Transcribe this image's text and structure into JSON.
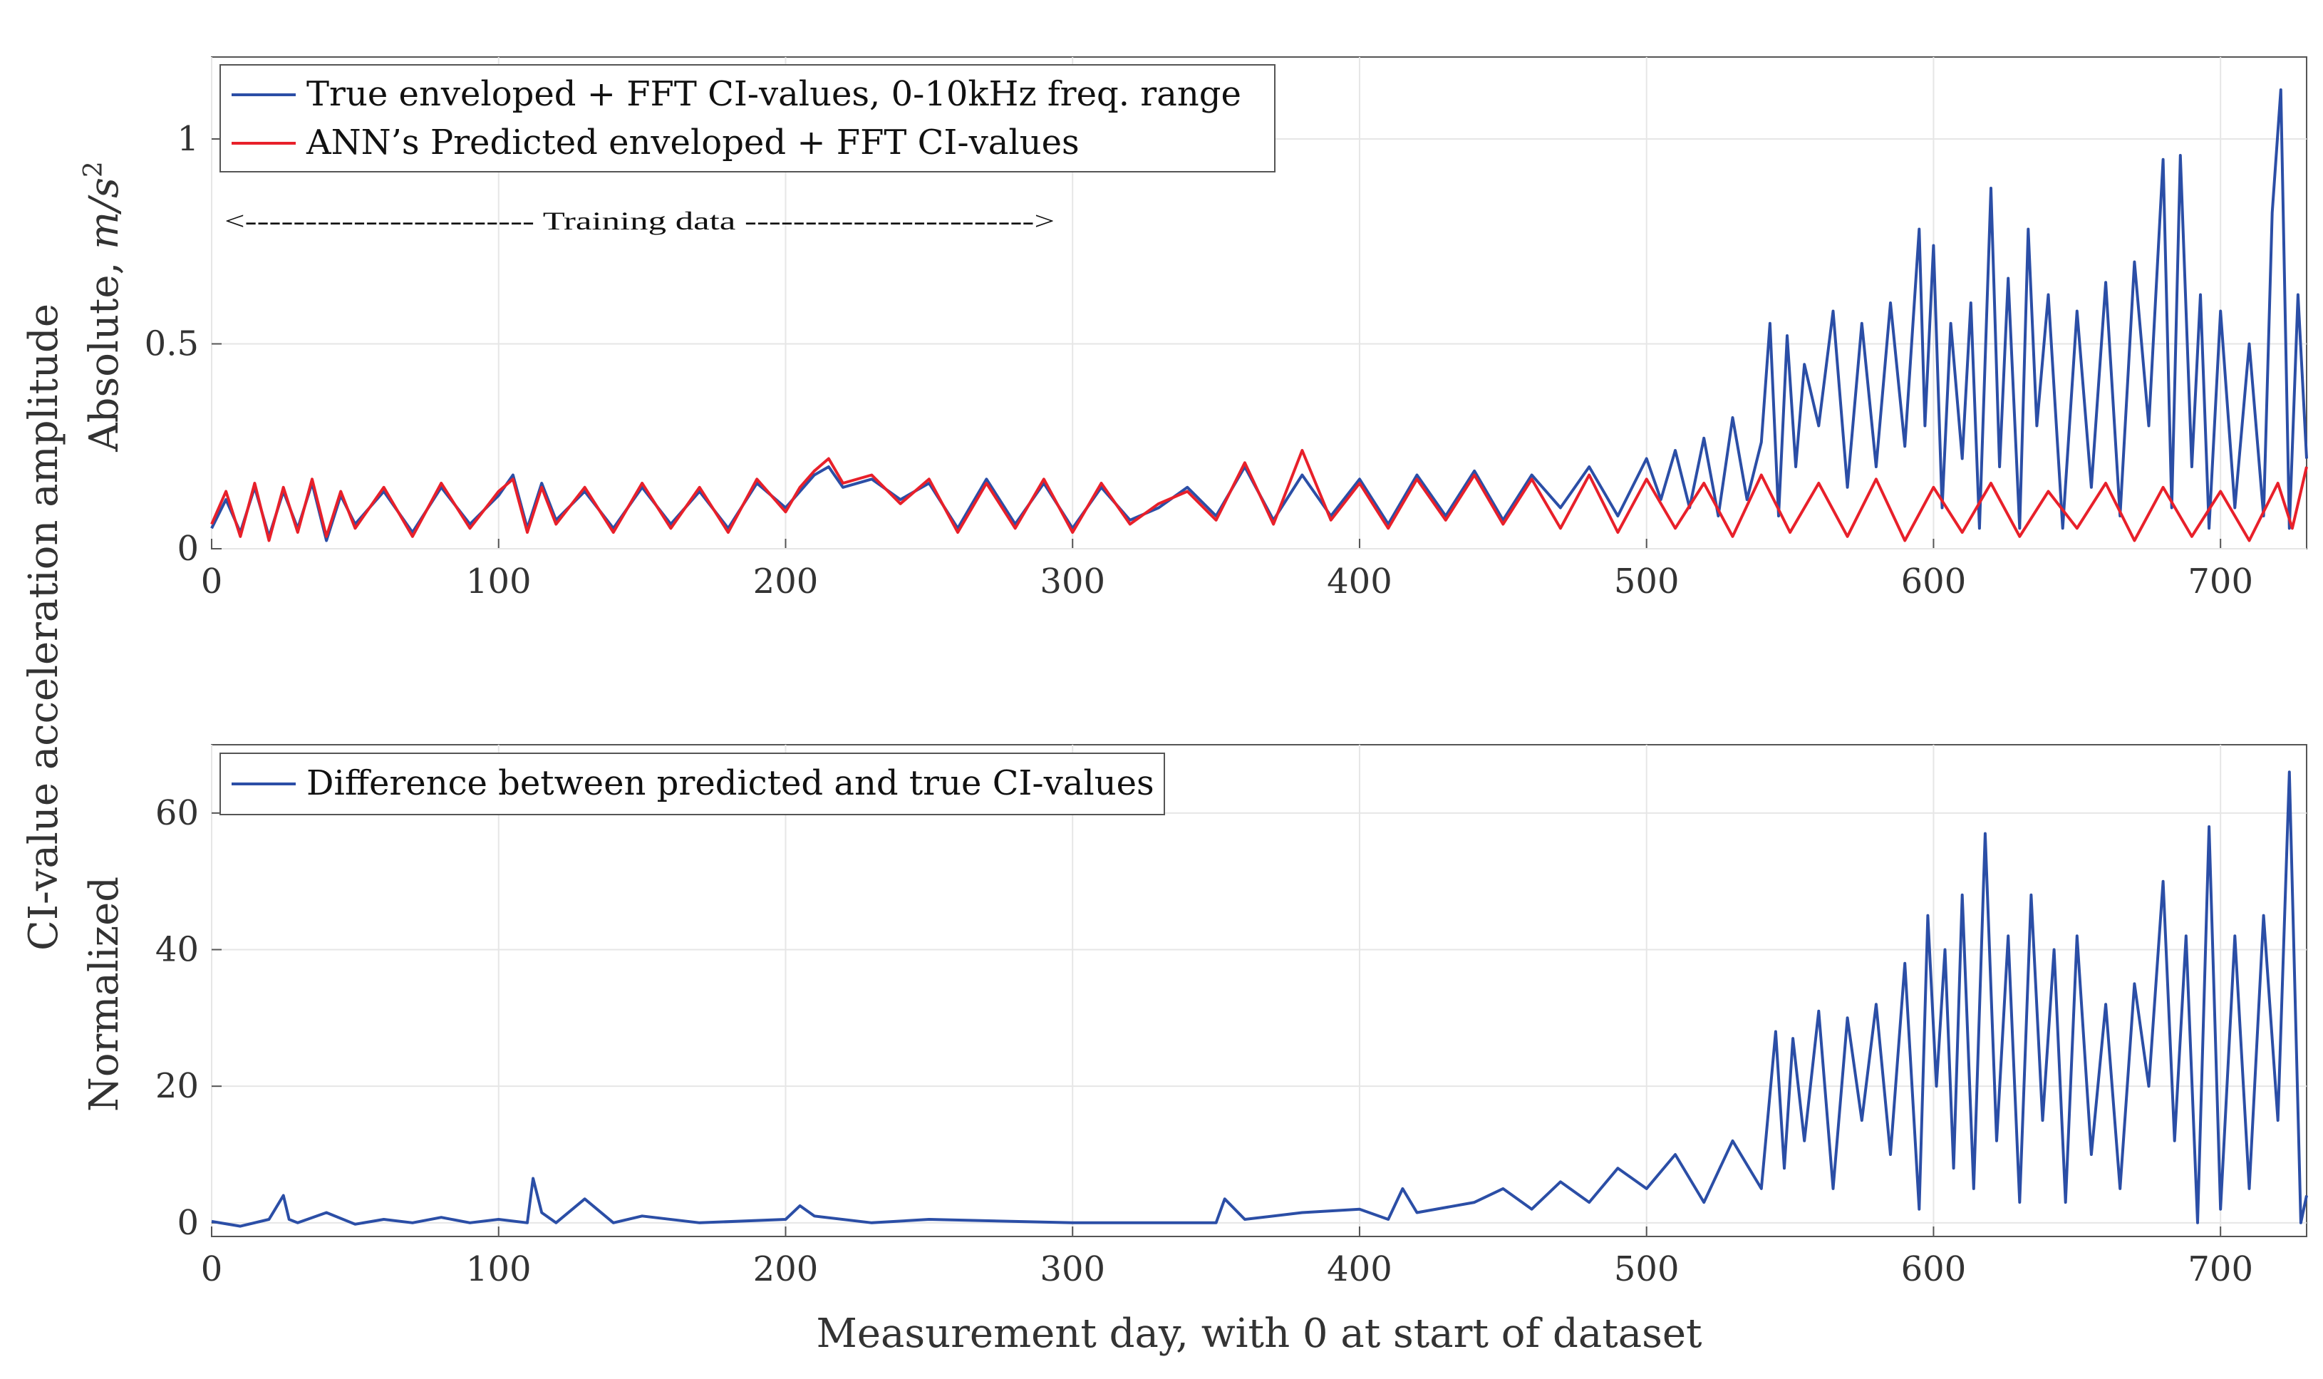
{
  "figure": {
    "shared_ylabel": "CI-value acceleration amplitude",
    "shared_xlabel": "Measurement day, with 0 at start of dataset"
  },
  "colors": {
    "true_series": "#2b4ea6",
    "predicted_series": "#e8202a",
    "grid": "#e6e6e6",
    "axes": "#555555"
  },
  "chart_data": [
    {
      "type": "line",
      "panel": "top",
      "ylabel": "Absolute, m/s²",
      "ylabel_parts": {
        "prefix": "Absolute, ",
        "unit": "m/s",
        "exponent": "2"
      },
      "xlim": [
        0,
        730
      ],
      "ylim": [
        0,
        1.2
      ],
      "xticks": [
        0,
        100,
        200,
        300,
        400,
        500,
        600,
        700
      ],
      "yticks": [
        0,
        0.5,
        1
      ],
      "ytick_labels": [
        "0",
        "0.5",
        "1"
      ],
      "grid": true,
      "legend_position": "top-left",
      "annotation": "<------------------------ Training data ------------------------>",
      "annotation_span": [
        0,
        300
      ],
      "series": [
        {
          "name": "True enveloped + FFT CI-values, 0-10kHz freq. range",
          "color": "#2b4ea6",
          "x": [
            0,
            5,
            10,
            15,
            20,
            25,
            30,
            35,
            40,
            45,
            50,
            60,
            70,
            80,
            90,
            100,
            105,
            110,
            115,
            120,
            130,
            140,
            150,
            160,
            170,
            180,
            190,
            200,
            205,
            210,
            215,
            220,
            230,
            240,
            250,
            260,
            270,
            280,
            290,
            300,
            310,
            320,
            330,
            340,
            350,
            360,
            370,
            380,
            390,
            400,
            410,
            420,
            430,
            440,
            450,
            460,
            470,
            480,
            490,
            500,
            505,
            510,
            515,
            520,
            525,
            530,
            535,
            540,
            543,
            546,
            549,
            552,
            555,
            560,
            565,
            570,
            575,
            580,
            585,
            590,
            595,
            597,
            600,
            603,
            606,
            610,
            613,
            616,
            620,
            623,
            626,
            630,
            633,
            636,
            640,
            645,
            650,
            655,
            660,
            665,
            670,
            675,
            680,
            683,
            686,
            690,
            693,
            696,
            700,
            705,
            710,
            715,
            718,
            721,
            724,
            727,
            730
          ],
          "values": [
            0.05,
            0.12,
            0.04,
            0.15,
            0.03,
            0.14,
            0.05,
            0.16,
            0.02,
            0.13,
            0.06,
            0.14,
            0.04,
            0.15,
            0.06,
            0.13,
            0.18,
            0.05,
            0.16,
            0.07,
            0.14,
            0.05,
            0.15,
            0.06,
            0.14,
            0.05,
            0.16,
            0.1,
            0.14,
            0.18,
            0.2,
            0.15,
            0.17,
            0.12,
            0.16,
            0.05,
            0.17,
            0.06,
            0.16,
            0.05,
            0.15,
            0.07,
            0.1,
            0.15,
            0.08,
            0.2,
            0.07,
            0.18,
            0.08,
            0.17,
            0.06,
            0.18,
            0.08,
            0.19,
            0.07,
            0.18,
            0.1,
            0.2,
            0.08,
            0.22,
            0.12,
            0.24,
            0.1,
            0.27,
            0.08,
            0.32,
            0.12,
            0.26,
            0.55,
            0.08,
            0.52,
            0.2,
            0.45,
            0.3,
            0.58,
            0.15,
            0.55,
            0.2,
            0.6,
            0.25,
            0.78,
            0.3,
            0.74,
            0.1,
            0.55,
            0.22,
            0.6,
            0.05,
            0.88,
            0.2,
            0.66,
            0.05,
            0.78,
            0.3,
            0.62,
            0.05,
            0.58,
            0.15,
            0.65,
            0.08,
            0.7,
            0.3,
            0.95,
            0.1,
            0.96,
            0.2,
            0.62,
            0.05,
            0.58,
            0.1,
            0.5,
            0.08,
            0.82,
            1.12,
            0.05,
            0.62,
            0.22
          ]
        },
        {
          "name": "ANN’s Predicted enveloped + FFT CI-values",
          "color": "#e8202a",
          "x": [
            0,
            5,
            10,
            15,
            20,
            25,
            30,
            35,
            40,
            45,
            50,
            60,
            70,
            80,
            90,
            100,
            105,
            110,
            115,
            120,
            130,
            140,
            150,
            160,
            170,
            180,
            190,
            200,
            205,
            210,
            215,
            220,
            230,
            240,
            250,
            260,
            270,
            280,
            290,
            300,
            310,
            320,
            330,
            340,
            350,
            360,
            370,
            380,
            390,
            400,
            410,
            420,
            430,
            440,
            450,
            460,
            470,
            480,
            490,
            500,
            510,
            520,
            530,
            540,
            550,
            560,
            570,
            580,
            590,
            600,
            610,
            620,
            630,
            640,
            650,
            660,
            670,
            680,
            690,
            700,
            710,
            720,
            725,
            730
          ],
          "values": [
            0.06,
            0.14,
            0.03,
            0.16,
            0.02,
            0.15,
            0.04,
            0.17,
            0.03,
            0.14,
            0.05,
            0.15,
            0.03,
            0.16,
            0.05,
            0.14,
            0.17,
            0.04,
            0.15,
            0.06,
            0.15,
            0.04,
            0.16,
            0.05,
            0.15,
            0.04,
            0.17,
            0.09,
            0.15,
            0.19,
            0.22,
            0.16,
            0.18,
            0.11,
            0.17,
            0.04,
            0.16,
            0.05,
            0.17,
            0.04,
            0.16,
            0.06,
            0.11,
            0.14,
            0.07,
            0.21,
            0.06,
            0.24,
            0.07,
            0.16,
            0.05,
            0.17,
            0.07,
            0.18,
            0.06,
            0.17,
            0.05,
            0.18,
            0.04,
            0.17,
            0.05,
            0.16,
            0.03,
            0.18,
            0.04,
            0.16,
            0.03,
            0.17,
            0.02,
            0.15,
            0.04,
            0.16,
            0.03,
            0.14,
            0.05,
            0.16,
            0.02,
            0.15,
            0.03,
            0.14,
            0.02,
            0.16,
            0.05,
            0.2
          ]
        }
      ]
    },
    {
      "type": "line",
      "panel": "bottom",
      "ylabel": "Normalized",
      "xlabel": "Measurement day, with 0 at start of dataset",
      "xlim": [
        0,
        730
      ],
      "ylim": [
        -2,
        70
      ],
      "xticks": [
        0,
        100,
        200,
        300,
        400,
        500,
        600,
        700
      ],
      "yticks": [
        0,
        20,
        40,
        60
      ],
      "grid": true,
      "legend_position": "top-left",
      "series": [
        {
          "name": "Difference between predicted and true CI-values",
          "color": "#2b4ea6",
          "x": [
            0,
            10,
            20,
            25,
            27,
            30,
            40,
            50,
            60,
            70,
            80,
            90,
            100,
            110,
            112,
            115,
            120,
            130,
            140,
            150,
            170,
            200,
            205,
            210,
            230,
            250,
            300,
            350,
            353,
            360,
            380,
            400,
            410,
            415,
            420,
            440,
            450,
            460,
            470,
            480,
            490,
            500,
            510,
            520,
            530,
            540,
            545,
            548,
            551,
            555,
            560,
            565,
            570,
            575,
            580,
            585,
            590,
            595,
            598,
            601,
            604,
            607,
            610,
            614,
            618,
            622,
            626,
            630,
            634,
            638,
            642,
            646,
            650,
            655,
            660,
            665,
            670,
            675,
            680,
            684,
            688,
            692,
            696,
            700,
            705,
            710,
            715,
            720,
            724,
            728,
            730
          ],
          "values": [
            0.2,
            -0.5,
            0.5,
            4,
            0.5,
            0,
            1.5,
            -0.2,
            0.5,
            0,
            0.8,
            0,
            0.5,
            0,
            6.5,
            1.5,
            0,
            3.5,
            0,
            1,
            0,
            0.5,
            2.5,
            1,
            0,
            0.5,
            0,
            0,
            3.5,
            0.5,
            1.5,
            2,
            0.5,
            5,
            1.5,
            3,
            5,
            2,
            6,
            3,
            8,
            5,
            10,
            3,
            12,
            5,
            28,
            8,
            27,
            12,
            31,
            5,
            30,
            15,
            32,
            10,
            38,
            2,
            45,
            20,
            40,
            8,
            48,
            5,
            57,
            12,
            42,
            3,
            48,
            15,
            40,
            3,
            42,
            10,
            32,
            5,
            35,
            20,
            50,
            12,
            42,
            0,
            58,
            2,
            42,
            5,
            45,
            15,
            66,
            0,
            4
          ]
        }
      ]
    }
  ]
}
